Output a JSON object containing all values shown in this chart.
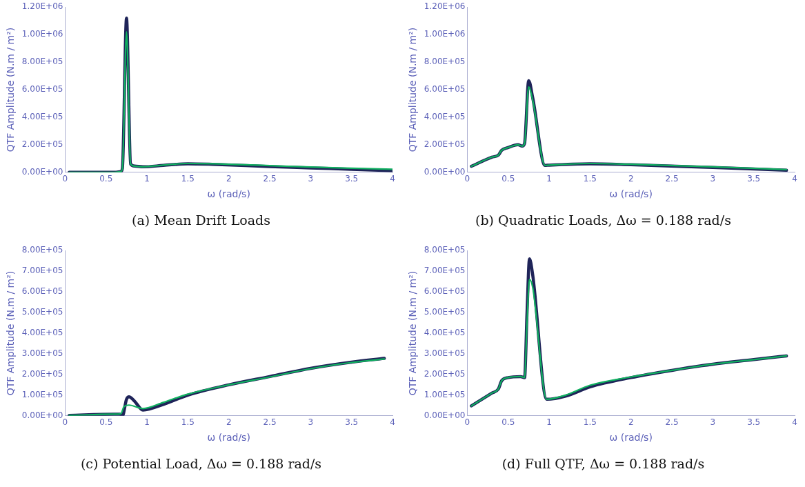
{
  "chart_data": [
    {
      "type": "line",
      "title": "(a) Mean Drift Loads",
      "xlabel": "ω (rad/s)",
      "ylabel": "QTF Amplitude (N.m / m²)",
      "xlim": [
        0,
        4
      ],
      "xticks": [
        0,
        0.5,
        1,
        1.5,
        2,
        2.5,
        3,
        3.5,
        4
      ],
      "ylim": [
        0,
        1200000
      ],
      "yticks": [
        {
          "value": 0,
          "label": "0.00E+00"
        },
        {
          "value": 200000,
          "label": "2.00E+05"
        },
        {
          "value": 400000,
          "label": "4.00E+05"
        },
        {
          "value": 600000,
          "label": "6.00E+05"
        },
        {
          "value": 800000,
          "label": "8.00E+05"
        },
        {
          "value": 1000000,
          "label": "1.00E+06"
        },
        {
          "value": 1200000,
          "label": "1.20E+06"
        }
      ],
      "series": [
        {
          "color": "#1f2459",
          "x": [
            0.05,
            0.6,
            0.68,
            0.7,
            0.75,
            0.8,
            0.85,
            0.95,
            1.2,
            1.5,
            1.8,
            2.5,
            3,
            3.5,
            4
          ],
          "values": [
            0,
            0,
            5000,
            30000,
            1120000,
            60000,
            45000,
            40000,
            50000,
            62000,
            58000,
            42000,
            32000,
            22000,
            12000
          ]
        },
        {
          "color": "#10b060",
          "x": [
            0.05,
            0.6,
            0.68,
            0.7,
            0.75,
            0.8,
            0.85,
            0.95,
            1.2,
            1.5,
            1.8,
            2.5,
            3,
            3.5,
            4
          ],
          "values": [
            0,
            0,
            5000,
            30000,
            1020000,
            60000,
            45000,
            40000,
            52000,
            64000,
            62000,
            48000,
            38000,
            30000,
            22000
          ]
        }
      ]
    },
    {
      "type": "line",
      "title": "(b) Quadratic Loads, Δω = 0.188 rad/s",
      "xlabel": "ω (rad/s)",
      "ylabel": "QTF Amplitude (N.m / m²)",
      "xlim": [
        0,
        4
      ],
      "xticks": [
        0,
        0.5,
        1,
        1.5,
        2,
        2.5,
        3,
        3.5,
        4
      ],
      "ylim": [
        0,
        1200000
      ],
      "yticks": [
        {
          "value": 0,
          "label": "0.00E+00"
        },
        {
          "value": 200000,
          "label": "2.00E+05"
        },
        {
          "value": 400000,
          "label": "4.00E+05"
        },
        {
          "value": 600000,
          "label": "6.00E+05"
        },
        {
          "value": 800000,
          "label": "8.00E+05"
        },
        {
          "value": 1000000,
          "label": "1.00E+06"
        },
        {
          "value": 1200000,
          "label": "1.20E+06"
        }
      ],
      "series": [
        {
          "color": "#1f2459",
          "x": [
            0.05,
            0.3,
            0.38,
            0.42,
            0.5,
            0.62,
            0.67,
            0.7,
            0.75,
            0.8,
            0.95,
            1,
            1.5,
            2,
            3,
            3.9
          ],
          "values": [
            44000,
            110000,
            125000,
            160000,
            180000,
            200000,
            190000,
            210000,
            665000,
            540000,
            50000,
            52000,
            62000,
            55000,
            35000,
            15000
          ]
        },
        {
          "color": "#10b060",
          "x": [
            0.05,
            0.3,
            0.38,
            0.42,
            0.5,
            0.62,
            0.67,
            0.7,
            0.75,
            0.8,
            0.95,
            1,
            1.5,
            2,
            3,
            3.9
          ],
          "values": [
            44000,
            110000,
            125000,
            160000,
            180000,
            200000,
            190000,
            210000,
            620000,
            520000,
            50000,
            52000,
            64000,
            58000,
            40000,
            20000
          ]
        }
      ]
    },
    {
      "type": "line",
      "title": "(c) Potential Load, Δω = 0.188 rad/s",
      "xlabel": "ω (rad/s)",
      "ylabel": "QTF Amplitude (N.m / m²)",
      "xlim": [
        0,
        4
      ],
      "xticks": [
        0,
        0.5,
        1,
        1.5,
        2,
        2.5,
        3,
        3.5,
        4
      ],
      "ylim": [
        0,
        800000
      ],
      "yticks": [
        {
          "value": 0,
          "label": "0.00E+00"
        },
        {
          "value": 100000,
          "label": "1.00E+05"
        },
        {
          "value": 200000,
          "label": "2.00E+05"
        },
        {
          "value": 300000,
          "label": "3.00E+05"
        },
        {
          "value": 400000,
          "label": "4.00E+05"
        },
        {
          "value": 500000,
          "label": "5.00E+05"
        },
        {
          "value": 600000,
          "label": "6.00E+05"
        },
        {
          "value": 700000,
          "label": "7.00E+05"
        },
        {
          "value": 800000,
          "label": "8.00E+05"
        }
      ],
      "series": [
        {
          "color": "#1f2459",
          "x": [
            0.05,
            0.6,
            0.67,
            0.7,
            0.75,
            0.78,
            0.85,
            0.95,
            1.2,
            1.5,
            2,
            2.5,
            3,
            3.5,
            3.9
          ],
          "values": [
            2000,
            8000,
            8000,
            0,
            80000,
            92000,
            70000,
            28000,
            55000,
            100000,
            150000,
            190000,
            230000,
            260000,
            278000
          ]
        },
        {
          "color": "#10b060",
          "x": [
            0.05,
            0.6,
            0.68,
            0.72,
            0.78,
            0.95,
            1.2,
            1.5,
            2,
            2.5,
            3,
            3.5,
            3.9
          ],
          "values": [
            2000,
            8000,
            10000,
            45000,
            52000,
            35000,
            65000,
            105000,
            150000,
            188000,
            228000,
            258000,
            275000
          ]
        }
      ]
    },
    {
      "type": "line",
      "title": "(d) Full QTF, Δω = 0.188 rad/s",
      "xlabel": "ω (rad/s)",
      "ylabel": "QTF Amplitude (N.m / m²)",
      "xlim": [
        0,
        4
      ],
      "xticks": [
        0,
        0.5,
        1,
        1.5,
        2,
        2.5,
        3,
        3.5,
        4
      ],
      "ylim": [
        0,
        800000
      ],
      "yticks": [
        {
          "value": 0,
          "label": "0.00E+00"
        },
        {
          "value": 100000,
          "label": "1.00E+05"
        },
        {
          "value": 200000,
          "label": "2.00E+05"
        },
        {
          "value": 300000,
          "label": "3.00E+05"
        },
        {
          "value": 400000,
          "label": "4.00E+05"
        },
        {
          "value": 500000,
          "label": "5.00E+05"
        },
        {
          "value": 600000,
          "label": "6.00E+05"
        },
        {
          "value": 700000,
          "label": "7.00E+05"
        },
        {
          "value": 800000,
          "label": "8.00E+05"
        }
      ],
      "series": [
        {
          "color": "#1f2459",
          "x": [
            0.05,
            0.3,
            0.38,
            0.42,
            0.5,
            0.65,
            0.7,
            0.73,
            0.76,
            0.8,
            0.97,
            1.2,
            1.5,
            2,
            2.5,
            3,
            3.5,
            3.9
          ],
          "values": [
            48000,
            110000,
            130000,
            170000,
            185000,
            190000,
            185000,
            500000,
            760000,
            680000,
            80000,
            95000,
            140000,
            185000,
            220000,
            250000,
            272000,
            290000
          ]
        },
        {
          "color": "#10b060",
          "x": [
            0.05,
            0.3,
            0.38,
            0.42,
            0.5,
            0.65,
            0.7,
            0.73,
            0.76,
            0.8,
            0.97,
            1.2,
            1.5,
            2,
            2.5,
            3,
            3.5,
            3.9
          ],
          "values": [
            48000,
            110000,
            130000,
            170000,
            185000,
            190000,
            185000,
            450000,
            660000,
            620000,
            80000,
            100000,
            148000,
            188000,
            220000,
            250000,
            272000,
            290000
          ]
        }
      ]
    }
  ]
}
